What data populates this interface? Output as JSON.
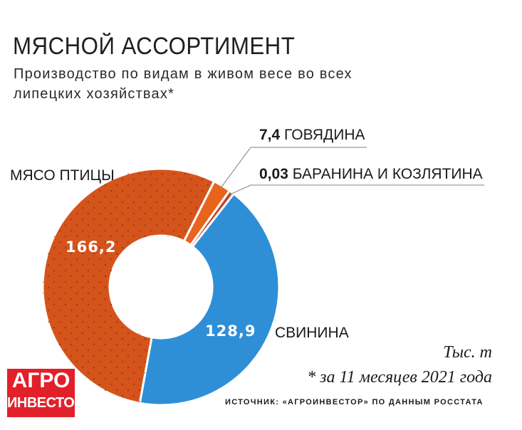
{
  "title": "МЯСНОЙ АССОРТИМЕНТ",
  "subtitle": "Производство по видам в живом весе во всех липецких хозяйствах*",
  "unit": "Тыс. т",
  "footnote": "* за 11 месяцев 2021 года",
  "source": "ИСТОЧНИК: «АГРОИНВЕСТОР» ПО ДАННЫМ РОССТАТА",
  "logo": {
    "line1": "АГРО",
    "line2": "ИНВЕСТОР"
  },
  "colors": {
    "poultry": "#d4541c",
    "beef": "#e8641c",
    "lamb": "#c0442a",
    "pork": "#2f8fd6"
  },
  "chart_data": {
    "type": "pie",
    "donut": true,
    "title": "МЯСНОЙ АССОРТИМЕНТ",
    "subtitle": "Производство по видам в живом весе во всех липецких хозяйствах*",
    "unit": "Тыс. т",
    "slices": [
      {
        "name": "СВИНИНА",
        "value": 128.9,
        "value_label": "128,9"
      },
      {
        "name": "МЯСО ПТИЦЫ",
        "value": 166.2,
        "value_label": "166,2"
      },
      {
        "name": "ГОВЯДИНА",
        "value": 7.4,
        "value_label": "7,4"
      },
      {
        "name": "БАРАНИНА И КОЗЛЯТИНА",
        "value": 0.03,
        "value_label": "0,03"
      }
    ]
  }
}
